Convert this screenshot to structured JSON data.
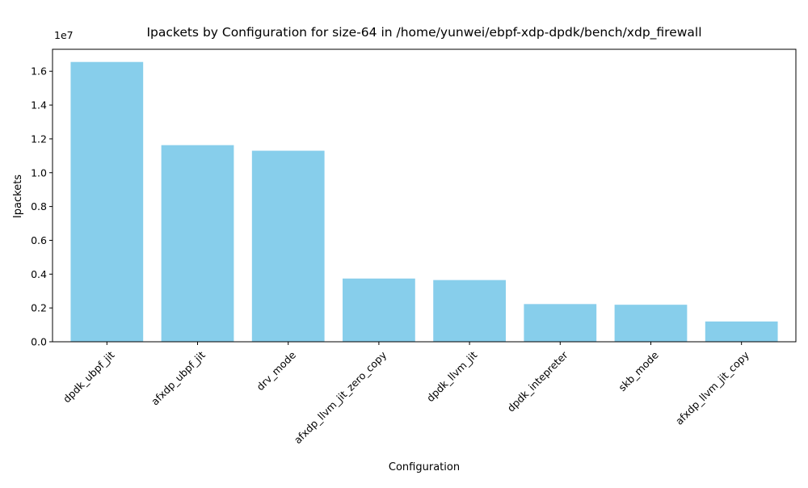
{
  "chart_data": {
    "type": "bar",
    "title": "Ipackets by Configuration for size-64 in /home/yunwei/ebpf-xdp-dpdk/bench/xdp_firewall",
    "xlabel": "Configuration",
    "ylabel": "Ipackets",
    "y_offset_label": "1e7",
    "y_scale": 10000000,
    "categories": [
      "dpdk_ubpf_jit",
      "afxdp_ubpf_jit",
      "drv_mode",
      "afxdp_llvm_jit_zero_copy",
      "dpdk_llvm_jit",
      "dpdk_intepreter",
      "skb_mode",
      "afxdp_llvm_jit_copy"
    ],
    "values": [
      16550000,
      11630000,
      11300000,
      3740000,
      3650000,
      2230000,
      2190000,
      1200000
    ],
    "ylim": [
      0,
      17300000
    ],
    "yticks": [
      0,
      2000000,
      4000000,
      6000000,
      8000000,
      10000000,
      12000000,
      14000000,
      16000000
    ],
    "ytick_labels": [
      "0.0",
      "0.2",
      "0.4",
      "0.6",
      "0.8",
      "1.0",
      "1.2",
      "1.4",
      "1.6"
    ],
    "bar_color": "#87CEEB",
    "grid": false,
    "legend": "none"
  }
}
